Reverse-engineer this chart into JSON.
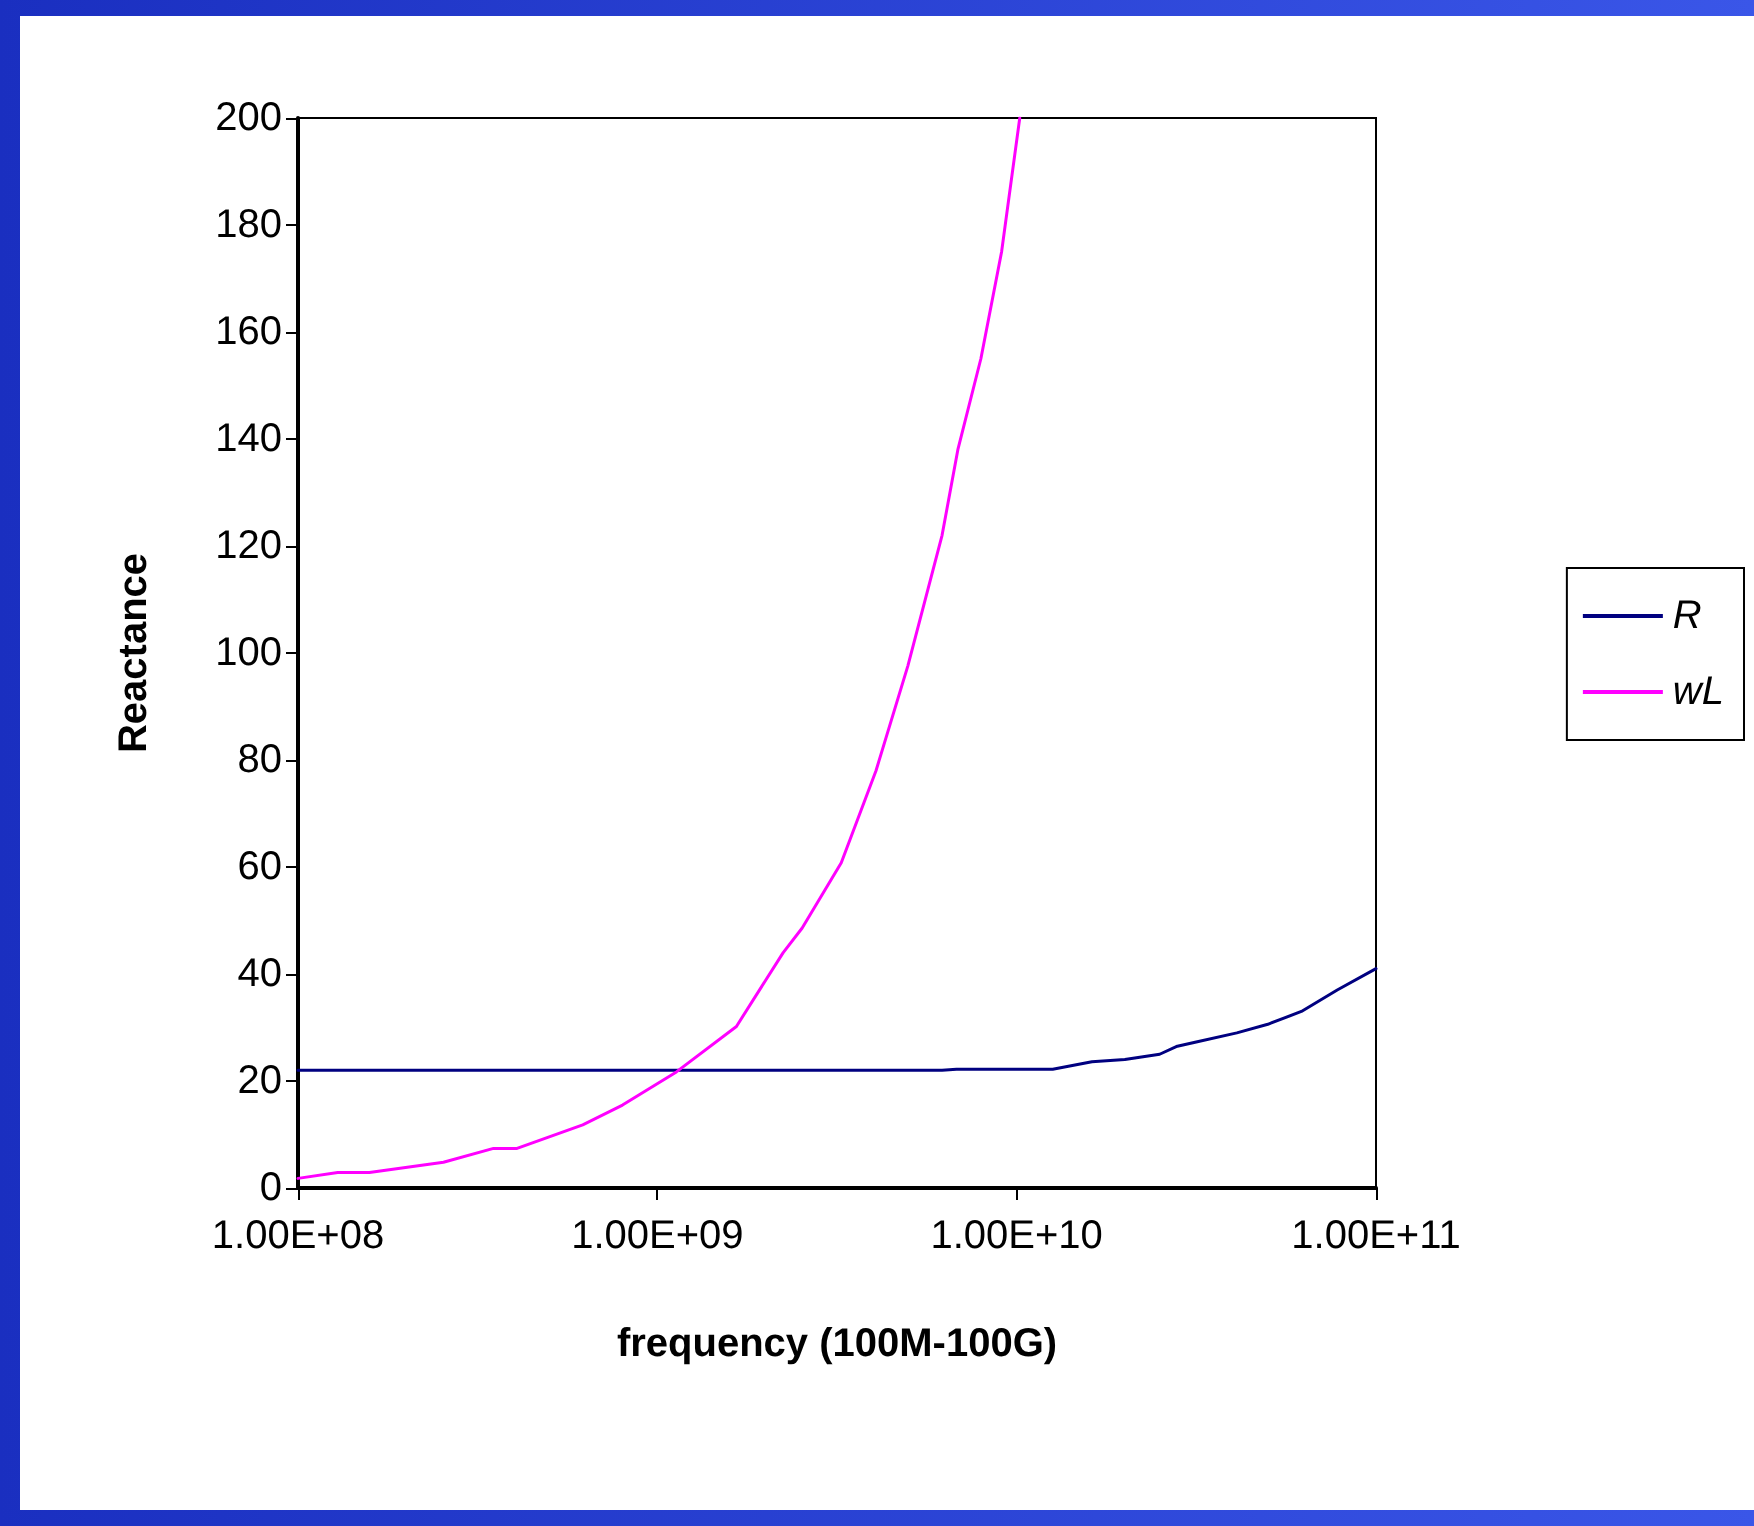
{
  "chart_data": {
    "type": "line",
    "xlabel": "frequency (100M-100G)",
    "ylabel": "Reactance",
    "log": "x",
    "xlim": [
      100000000,
      100000000000
    ],
    "xticks": [
      {
        "value": 100000000,
        "label": "1.00E+08"
      },
      {
        "value": 1000000000,
        "label": "1.00E+09"
      },
      {
        "value": 10000000000,
        "label": "1.00E+10"
      },
      {
        "value": 100000000000,
        "label": "1.00E+11"
      }
    ],
    "ylim": [
      0,
      200
    ],
    "yticks": [
      0,
      20,
      40,
      60,
      80,
      100,
      120,
      140,
      160,
      180,
      200
    ],
    "grid": false,
    "legend": "right",
    "marker": "none",
    "line_style": "solid",
    "series": [
      {
        "name": "R",
        "color": "#000080",
        "x": [
          100000000,
          1000000000,
          6200000000,
          6800000000,
          12600000000,
          16200000000,
          20000000000,
          25000000000,
          28000000000,
          31600000000,
          41000000000,
          50000000000,
          62000000000,
          78000000000,
          100000000000
        ],
        "values": [
          22,
          22,
          22,
          22.2,
          22.2,
          23.6,
          24,
          25,
          26.5,
          27.3,
          29,
          30.6,
          33,
          37,
          41
        ]
      },
      {
        "name": "wL",
        "color": "#ff00ff",
        "x": [
          100000000,
          129000000,
          158000000,
          254000000,
          350000000,
          407000000,
          620000000,
          800000000,
          1130000000,
          1660000000,
          2240000000,
          2530000000,
          3250000000,
          4060000000,
          4980000000,
          6200000000,
          6860000000,
          7950000000,
          9080000000,
          10200000000
        ],
        "values": [
          1.8,
          2.9,
          2.9,
          4.8,
          7.4,
          7.4,
          11.8,
          15.5,
          21.7,
          30.2,
          44,
          48.6,
          60.8,
          78,
          97.6,
          122,
          138,
          155,
          175,
          200
        ]
      }
    ]
  }
}
